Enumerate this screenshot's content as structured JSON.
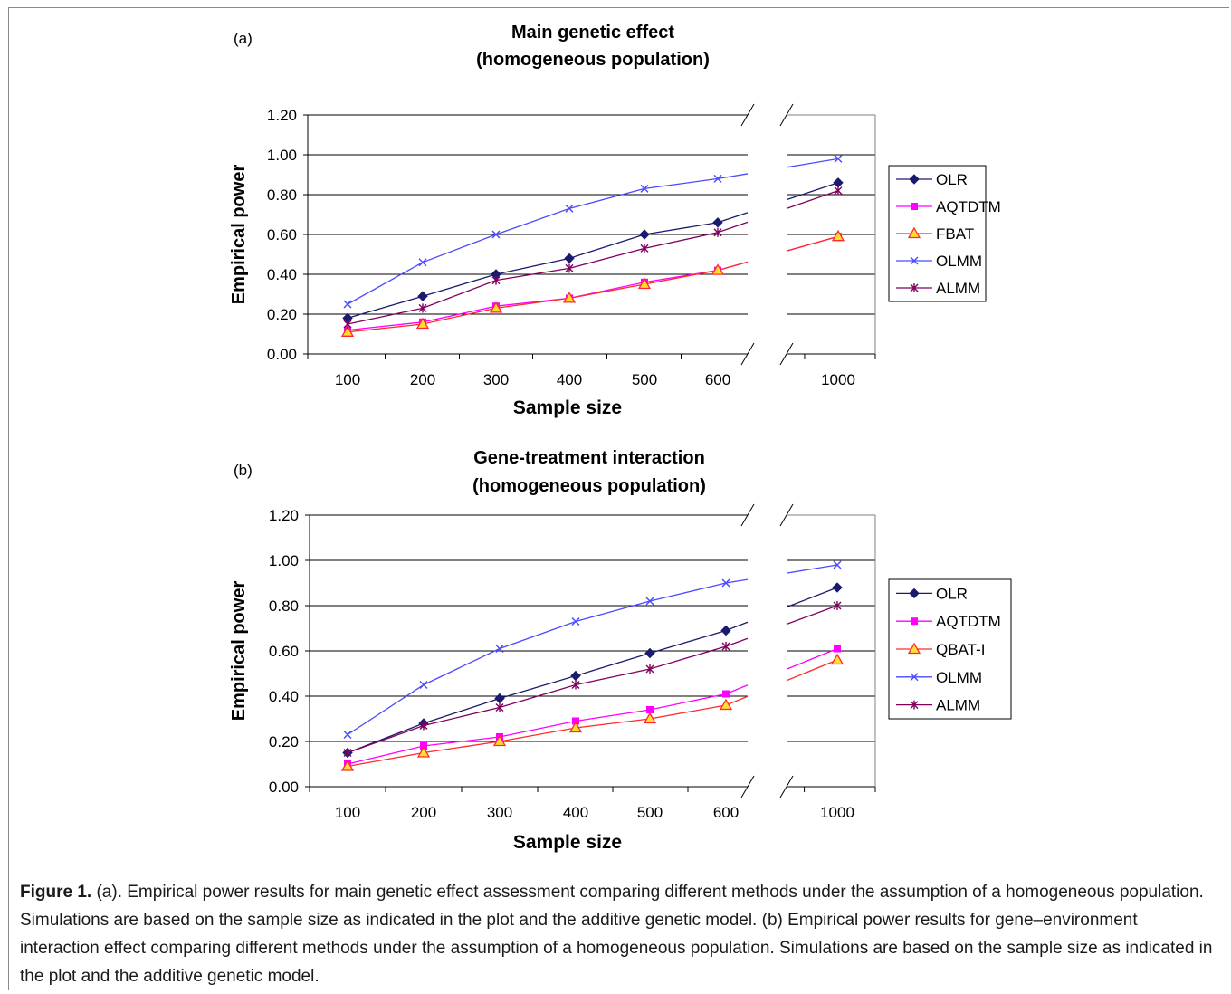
{
  "chart_data": [
    {
      "type": "line",
      "panel_label": "(a)",
      "title": "Main genetic effect",
      "subtitle": "(homogeneous population)",
      "xlabel": "Sample size",
      "ylabel": "Empirical power",
      "categories": [
        "100",
        "200",
        "300",
        "400",
        "500",
        "600",
        "1000"
      ],
      "x_axis_break": "between 600 and 1000",
      "ylim": [
        0,
        1.2
      ],
      "yticks": [
        "0.00",
        "0.20",
        "0.40",
        "0.60",
        "0.80",
        "1.00",
        "1.20"
      ],
      "grid": true,
      "legend_position": "right",
      "series": [
        {
          "name": "OLR",
          "color": "#1a1a6e",
          "marker": "diamond",
          "values": [
            0.18,
            0.29,
            0.4,
            0.48,
            0.6,
            0.66,
            0.86
          ]
        },
        {
          "name": "AQTDTM",
          "color": "#ff00ff",
          "marker": "square",
          "values": [
            0.12,
            0.16,
            0.24,
            0.28,
            0.36,
            0.42,
            0.59
          ]
        },
        {
          "name": "FBAT",
          "color": "#ff2a2a",
          "marker": "triangle",
          "values": [
            0.11,
            0.15,
            0.23,
            0.28,
            0.35,
            0.42,
            0.59
          ]
        },
        {
          "name": "OLMM",
          "color": "#4a4aff",
          "marker": "x",
          "values": [
            0.25,
            0.46,
            0.6,
            0.73,
            0.83,
            0.88,
            0.98
          ]
        },
        {
          "name": "ALMM",
          "color": "#800060",
          "marker": "star",
          "values": [
            0.15,
            0.23,
            0.37,
            0.43,
            0.53,
            0.61,
            0.82
          ]
        }
      ]
    },
    {
      "type": "line",
      "panel_label": "(b)",
      "title": "Gene-treatment interaction",
      "subtitle": "(homogeneous population)",
      "xlabel": "Sample size",
      "ylabel": "Empirical power",
      "categories": [
        "100",
        "200",
        "300",
        "400",
        "500",
        "600",
        "1000"
      ],
      "x_axis_break": "between 600 and 1000",
      "ylim": [
        0,
        1.2
      ],
      "yticks": [
        "0.00",
        "0.20",
        "0.40",
        "0.60",
        "0.80",
        "1.00",
        "1.20"
      ],
      "grid": true,
      "legend_position": "right",
      "series": [
        {
          "name": "OLR",
          "color": "#1a1a6e",
          "marker": "diamond",
          "values": [
            0.15,
            0.28,
            0.39,
            0.49,
            0.59,
            0.69,
            0.88
          ]
        },
        {
          "name": "AQTDTM",
          "color": "#ff00ff",
          "marker": "square",
          "values": [
            0.1,
            0.18,
            0.22,
            0.29,
            0.34,
            0.41,
            0.61
          ]
        },
        {
          "name": "QBAT-I",
          "color": "#ff2a2a",
          "marker": "triangle",
          "values": [
            0.09,
            0.15,
            0.2,
            0.26,
            0.3,
            0.36,
            0.56
          ]
        },
        {
          "name": "OLMM",
          "color": "#4a4aff",
          "marker": "x",
          "values": [
            0.23,
            0.45,
            0.61,
            0.73,
            0.82,
            0.9,
            0.98
          ]
        },
        {
          "name": "ALMM",
          "color": "#800060",
          "marker": "star",
          "values": [
            0.15,
            0.27,
            0.35,
            0.45,
            0.52,
            0.62,
            0.8
          ]
        }
      ]
    }
  ],
  "caption": {
    "label": "Figure 1.",
    "text": "(a). Empirical power results for main genetic effect assessment comparing different methods under the assumption of a homogeneous population. Simulations are based on the sample size as indicated in the plot and the additive genetic model. (b) Empirical power results for gene–environment interaction effect comparing different methods under the assumption of a homogeneous population. Simulations are based on the sample size as indicated in the plot and the additive genetic model."
  }
}
